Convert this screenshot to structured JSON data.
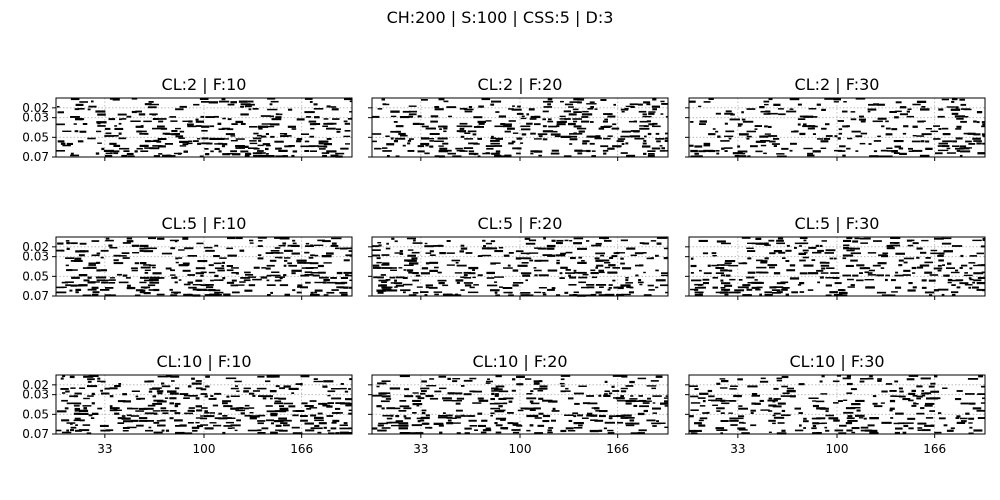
{
  "figure": {
    "suptitle": "CH:200 | S:100 | CSS:5 | D:3"
  },
  "chart_data": [
    {
      "type": "raster",
      "title": "CL:2 | F:10",
      "xlim": [
        0,
        200
      ],
      "ylim": [
        0.07,
        0.01
      ],
      "xticks": [
        33,
        100,
        166
      ],
      "yticks": [
        0.02,
        0.03,
        0.05,
        0.07
      ],
      "grid": true,
      "density": 0.62,
      "seed": 11
    },
    {
      "type": "raster",
      "title": "CL:2 | F:20",
      "xlim": [
        0,
        200
      ],
      "ylim": [
        0.07,
        0.01
      ],
      "xticks": [
        33,
        100,
        166
      ],
      "yticks": [
        0.02,
        0.03,
        0.05,
        0.07
      ],
      "grid": true,
      "density": 0.58,
      "seed": 12
    },
    {
      "type": "raster",
      "title": "CL:2 | F:30",
      "xlim": [
        0,
        200
      ],
      "ylim": [
        0.07,
        0.01
      ],
      "xticks": [
        33,
        100,
        166
      ],
      "yticks": [
        0.02,
        0.03,
        0.05,
        0.07
      ],
      "grid": true,
      "density": 0.55,
      "seed": 13
    },
    {
      "type": "raster",
      "title": "CL:5 | F:10",
      "xlim": [
        0,
        200
      ],
      "ylim": [
        0.07,
        0.01
      ],
      "xticks": [
        33,
        100,
        166
      ],
      "yticks": [
        0.02,
        0.03,
        0.05,
        0.07
      ],
      "grid": true,
      "density": 0.66,
      "seed": 21
    },
    {
      "type": "raster",
      "title": "CL:5 | F:20",
      "xlim": [
        0,
        200
      ],
      "ylim": [
        0.07,
        0.01
      ],
      "xticks": [
        33,
        100,
        166
      ],
      "yticks": [
        0.02,
        0.03,
        0.05,
        0.07
      ],
      "grid": true,
      "density": 0.6,
      "seed": 22
    },
    {
      "type": "raster",
      "title": "CL:5 | F:30",
      "xlim": [
        0,
        200
      ],
      "ylim": [
        0.07,
        0.01
      ],
      "xticks": [
        33,
        100,
        166
      ],
      "yticks": [
        0.02,
        0.03,
        0.05,
        0.07
      ],
      "grid": true,
      "density": 0.52,
      "seed": 23
    },
    {
      "type": "raster",
      "title": "CL:10 | F:10",
      "xlim": [
        0,
        200
      ],
      "ylim": [
        0.07,
        0.01
      ],
      "xticks": [
        33,
        100,
        166
      ],
      "yticks": [
        0.02,
        0.03,
        0.05,
        0.07
      ],
      "grid": true,
      "density": 0.64,
      "seed": 31
    },
    {
      "type": "raster",
      "title": "CL:10 | F:20",
      "xlim": [
        0,
        200
      ],
      "ylim": [
        0.07,
        0.01
      ],
      "xticks": [
        33,
        100,
        166
      ],
      "yticks": [
        0.02,
        0.03,
        0.05,
        0.07
      ],
      "grid": true,
      "density": 0.6,
      "seed": 32
    },
    {
      "type": "raster",
      "title": "CL:10 | F:30",
      "xlim": [
        0,
        200
      ],
      "ylim": [
        0.07,
        0.01
      ],
      "xticks": [
        33,
        100,
        166
      ],
      "yticks": [
        0.02,
        0.03,
        0.05,
        0.07
      ],
      "grid": true,
      "density": 0.54,
      "seed": 33
    }
  ]
}
